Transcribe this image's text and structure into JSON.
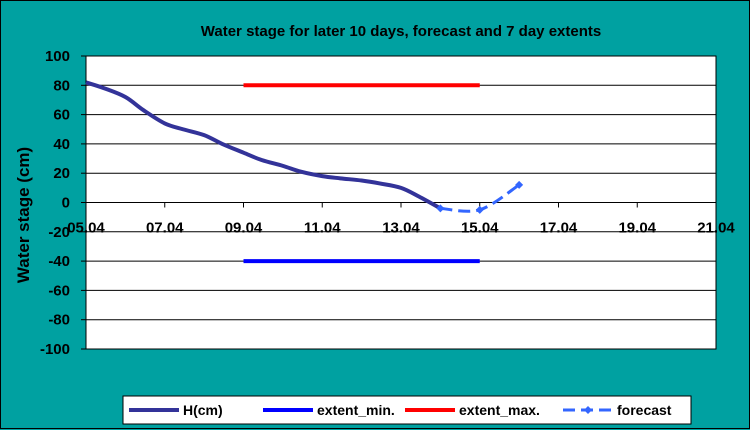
{
  "chart_data": {
    "type": "line",
    "title": "Water stage for later 10 days, forecast and 7 day extents",
    "xlabel": "",
    "ylabel": "Water stage (cm)",
    "x_ticks": [
      "05.04",
      "07.04",
      "09.04",
      "11.04",
      "13.04",
      "15.04",
      "17.04",
      "19.04",
      "21.04"
    ],
    "xlim": [
      "05.04",
      "21.04"
    ],
    "y_ticks": [
      "100",
      "80",
      "60",
      "40",
      "20",
      "0",
      "-20",
      "-40",
      "-60",
      "-80",
      "-100"
    ],
    "ylim": [
      -100,
      100
    ],
    "grid": "horizontal",
    "legend_position": "bottom",
    "series": [
      {
        "name": "H(cm)",
        "color": "#333399",
        "style": "solid",
        "points": [
          [
            "05.04",
            82
          ],
          [
            "05.5",
            78
          ],
          [
            "06.04",
            72
          ],
          [
            "06.5",
            63
          ],
          [
            "07.04",
            54
          ],
          [
            "07.5",
            50
          ],
          [
            "08.04",
            46
          ],
          [
            "08.5",
            40
          ],
          [
            "09.04",
            34
          ],
          [
            "09.5",
            29
          ],
          [
            "10.04",
            25
          ],
          [
            "10.5",
            21
          ],
          [
            "11.04",
            18
          ],
          [
            "11.5",
            16.5
          ],
          [
            "12.04",
            15
          ],
          [
            "12.5",
            13
          ],
          [
            "13.04",
            10
          ],
          [
            "13.5",
            4
          ],
          [
            "14.04",
            -4
          ]
        ]
      },
      {
        "name": "extent_min.",
        "color": "#0000ff",
        "style": "solid",
        "points": [
          [
            "09.04",
            -40
          ],
          [
            "15.04",
            -40
          ]
        ]
      },
      {
        "name": "extent_max.",
        "color": "#ff0000",
        "style": "solid",
        "points": [
          [
            "09.04",
            80
          ],
          [
            "15.04",
            80
          ]
        ]
      },
      {
        "name": "forecast",
        "color": "#3366ff",
        "style": "dashed",
        "marker": "diamond",
        "points": [
          [
            "14.04",
            -4
          ],
          [
            "15.04",
            -5
          ],
          [
            "16.04",
            12
          ]
        ]
      }
    ]
  }
}
